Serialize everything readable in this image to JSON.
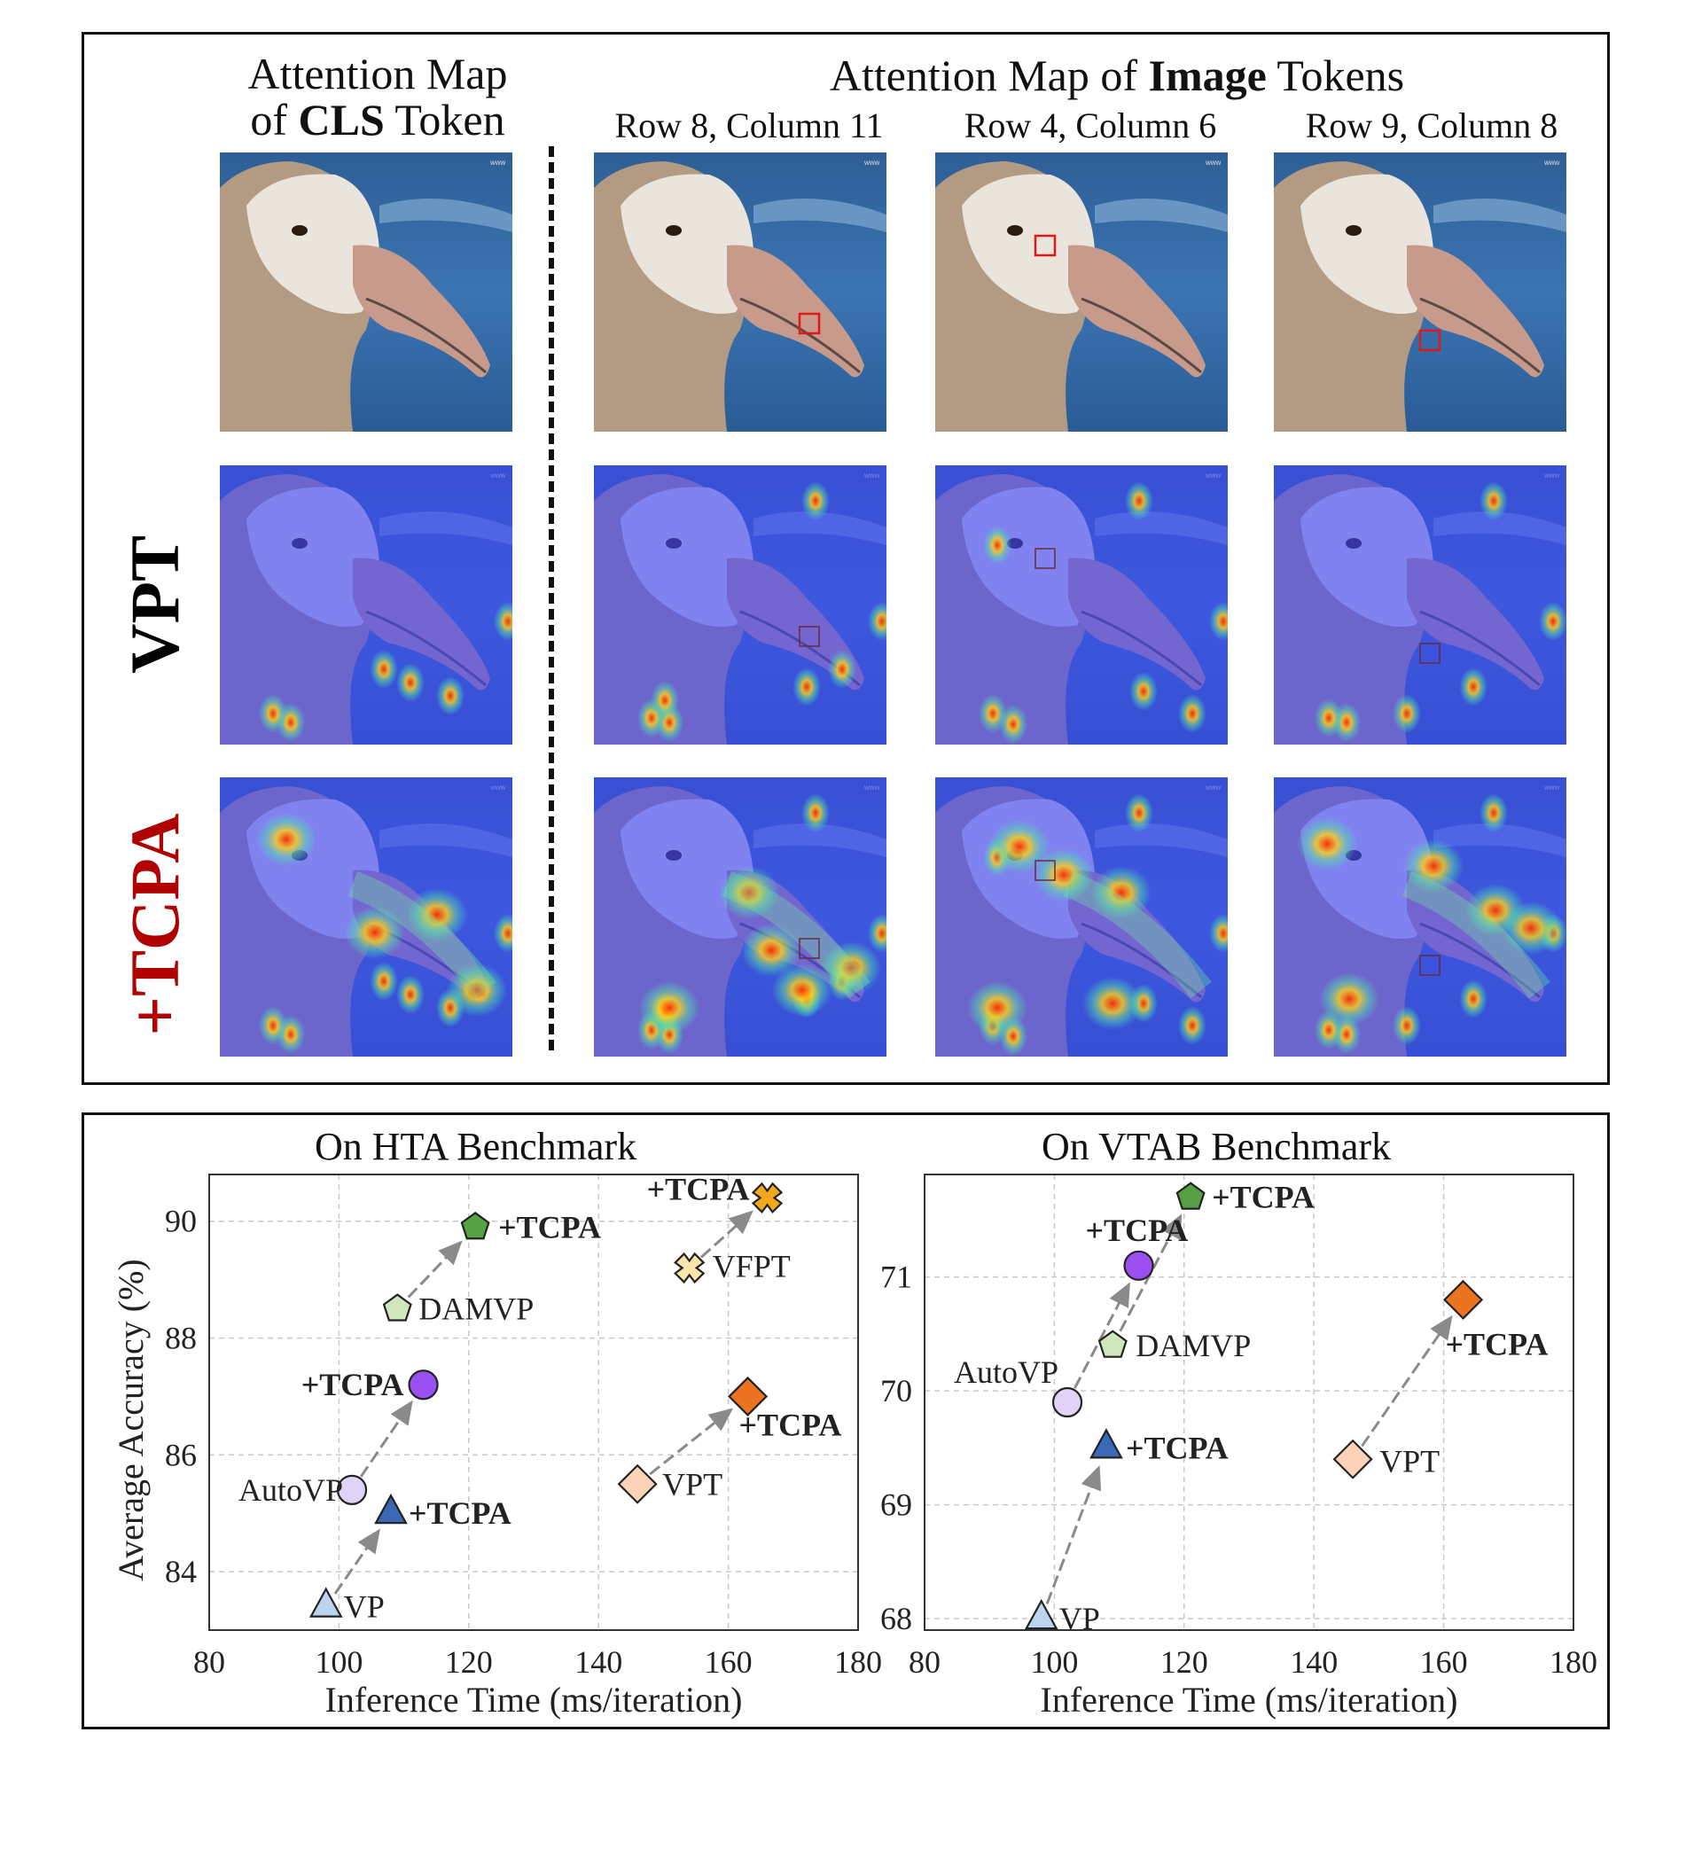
{
  "top": {
    "cls_header_line1": "Attention Map",
    "cls_header_of": "of ",
    "cls_header_bold": "CLS",
    "cls_header_tail": " Token",
    "img_header_pre": "Attention Map of ",
    "img_header_bold": "Image",
    "img_header_post": " Tokens",
    "columns": [
      "Row 8, Column 11",
      "Row 4, Column 6",
      "Row 9, Column 8"
    ],
    "row_labels": [
      "VPT",
      "+TCPA"
    ],
    "row_label_colors": [
      "#000000",
      "#b00000"
    ],
    "watermark": "www"
  },
  "chart_data": [
    {
      "type": "scatter",
      "title": "On HTA Benchmark",
      "xlabel": "Inference Time (ms/iteration)",
      "ylabel": "Average Accuracy (%)",
      "xlim": [
        80,
        180
      ],
      "ylim": [
        83,
        90.8
      ],
      "xticks": [
        80,
        100,
        120,
        140,
        160,
        180
      ],
      "yticks": [
        84,
        86,
        88,
        90
      ],
      "grid": true,
      "points": [
        {
          "label": "VP",
          "x": 98,
          "y": 83.4,
          "marker": "triangle",
          "color": "#bcd4ef"
        },
        {
          "label": "+TCPA",
          "x": 108,
          "y": 85.0,
          "marker": "triangle",
          "color": "#3c67b5"
        },
        {
          "label": "AutoVP",
          "x": 102,
          "y": 85.4,
          "marker": "circle",
          "color": "#e1d3f7"
        },
        {
          "label": "+TCPA",
          "x": 113,
          "y": 87.2,
          "marker": "circle",
          "color": "#9c4ff0"
        },
        {
          "label": "DAMVP",
          "x": 109,
          "y": 88.5,
          "marker": "pentagon",
          "color": "#cfe7bb"
        },
        {
          "label": "+TCPA",
          "x": 121,
          "y": 89.9,
          "marker": "pentagon",
          "color": "#57a043"
        },
        {
          "label": "VFPT",
          "x": 154,
          "y": 89.2,
          "marker": "x",
          "color": "#fbe5ad"
        },
        {
          "label": "+TCPA",
          "x": 166,
          "y": 90.4,
          "marker": "x",
          "color": "#f2a81d"
        },
        {
          "label": "VPT",
          "x": 146,
          "y": 85.5,
          "marker": "diamond",
          "color": "#fcd3b9"
        },
        {
          "label": "+TCPA",
          "x": 163,
          "y": 87.0,
          "marker": "diamond",
          "color": "#ec731f"
        }
      ]
    },
    {
      "type": "scatter",
      "title": "On VTAB Benchmark",
      "xlabel": "Inference Time (ms/iteration)",
      "ylabel": "",
      "xlim": [
        80,
        180
      ],
      "ylim": [
        67.9,
        71.9
      ],
      "xticks": [
        80,
        100,
        120,
        140,
        160,
        180
      ],
      "yticks": [
        68,
        69,
        70,
        71
      ],
      "grid": true,
      "points": [
        {
          "label": "VP",
          "x": 98,
          "y": 68.0,
          "marker": "triangle",
          "color": "#bcd4ef"
        },
        {
          "label": "+TCPA",
          "x": 108,
          "y": 69.5,
          "marker": "triangle",
          "color": "#3c67b5"
        },
        {
          "label": "AutoVP",
          "x": 102,
          "y": 69.9,
          "marker": "circle",
          "color": "#e1d3f7"
        },
        {
          "label": "+TCPA",
          "x": 113,
          "y": 71.1,
          "marker": "circle",
          "color": "#9c4ff0"
        },
        {
          "label": "DAMVP",
          "x": 109,
          "y": 70.4,
          "marker": "pentagon",
          "color": "#cfe7bb"
        },
        {
          "label": "+TCPA",
          "x": 121,
          "y": 71.7,
          "marker": "pentagon",
          "color": "#57a043"
        },
        {
          "label": "VPT",
          "x": 146,
          "y": 69.4,
          "marker": "diamond",
          "color": "#fcd3b9"
        },
        {
          "label": "+TCPA",
          "x": 163,
          "y": 70.8,
          "marker": "diamond",
          "color": "#ec731f"
        }
      ]
    }
  ]
}
